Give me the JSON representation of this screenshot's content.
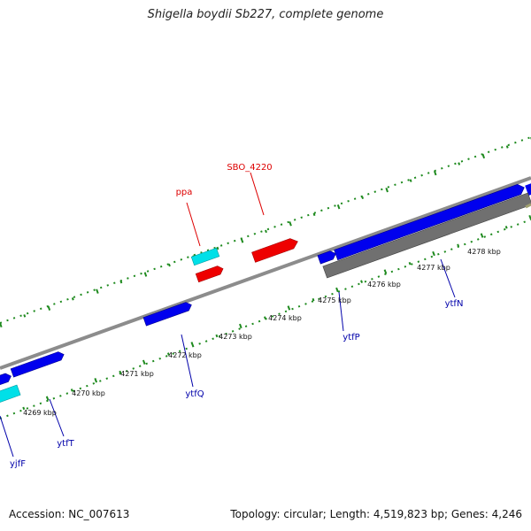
{
  "title": "Shigella boydii Sb227, complete genome",
  "footer": {
    "accession": "Accession: NC_007613",
    "summary": "Topology: circular; Length: 4,519,823 bp; Genes: 4,246"
  },
  "colors": {
    "background": "#ffffff",
    "backbone": "#8c8c8c",
    "ruler": "#1e8a1e",
    "gene_forward": "#0000ee",
    "gene_rna": "#00e0e8",
    "gene_highlight": "#ee0000",
    "gene_other": "#707070",
    "label_blue": "#0000aa",
    "label_red": "#dd0000"
  },
  "scale_labels": [
    "4269 kbp",
    "4270 kbp",
    "4271 kbp",
    "4272 kbp",
    "4273 kbp",
    "4274 kbp",
    "4275 kbp",
    "4276 kbp",
    "4277 kbp",
    "4278 kbp"
  ],
  "gene_labels": {
    "ppa": "ppa",
    "sbo4220": "SBO_4220",
    "yjfF": "yjfF",
    "ytfT": "ytfT",
    "ytfQ": "ytfQ",
    "ytfP": "ytfP",
    "ytfN": "ytfN"
  }
}
